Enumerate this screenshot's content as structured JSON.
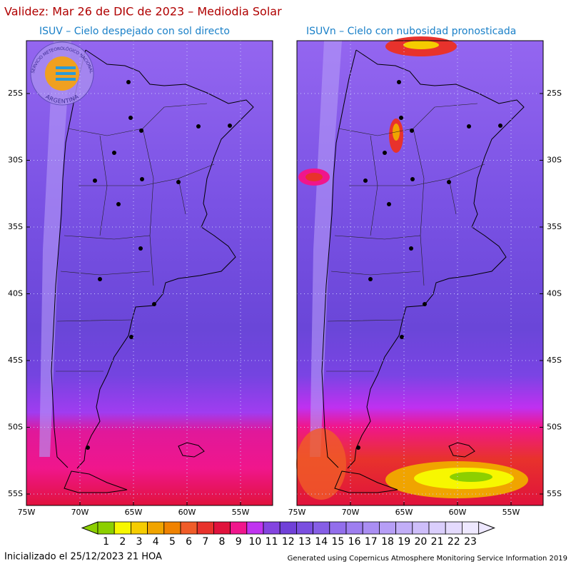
{
  "header": {
    "title": "Validez: Mar 26 de DIC de 2023 – Mediodia Solar"
  },
  "panels": [
    {
      "subtitle": "ISUV – Cielo despejado con sol directo"
    },
    {
      "subtitle": "ISUVn – Cielo con nubosidad pronosticada"
    }
  ],
  "logo": {
    "top": "SERVICIO METEOROLÓGICO NACIONAL",
    "bottom": "ARGENTINA"
  },
  "lat_labels": [
    "25S",
    "30S",
    "35S",
    "40S",
    "45S",
    "50S",
    "55S"
  ],
  "lon_labels": [
    "75W",
    "70W",
    "65W",
    "60W",
    "55W"
  ],
  "colorbar": {
    "labels": [
      1,
      2,
      3,
      4,
      5,
      6,
      7,
      8,
      9,
      10,
      11,
      12,
      13,
      14,
      15,
      16,
      17,
      18,
      19,
      20,
      21,
      22,
      23
    ],
    "colors": [
      "#8ccf00",
      "#f7f700",
      "#f5cc00",
      "#f0a400",
      "#f08200",
      "#f05c28",
      "#e8322c",
      "#e0123c",
      "#f0168c",
      "#c034f0",
      "#8444e0",
      "#7040d8",
      "#7a4ee0",
      "#865ee6",
      "#926eec",
      "#9e7ef0",
      "#aa8ef3",
      "#b69ef6",
      "#c2aef8",
      "#cebefa",
      "#dacefc",
      "#e4dafd",
      "#eee8ff"
    ]
  },
  "footer": {
    "left": "Inicializado el 25/12/2023 21 HOA",
    "right": "Generated using Copernicus Atmosphere Monitoring Service Information 2019"
  }
}
